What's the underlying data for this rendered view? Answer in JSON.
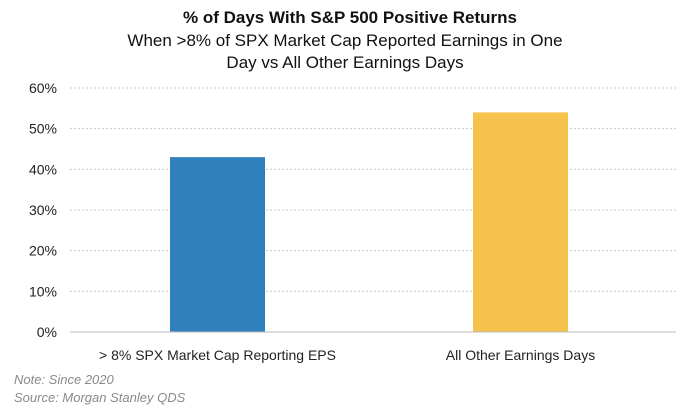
{
  "chart_data": {
    "type": "bar",
    "title": "% of Days With S&P 500 Positive Returns",
    "subtitle": "When >8% of SPX Market Cap Reported Earnings in One Day vs All Other Earnings Days",
    "categories": [
      "> 8% SPX Market Cap Reporting EPS",
      "All Other Earnings Days"
    ],
    "values": [
      43,
      54
    ],
    "colors": [
      "#3180be",
      "#f5c24c"
    ],
    "ylim": [
      0,
      60
    ],
    "yticks": [
      "0%",
      "10%",
      "20%",
      "30%",
      "40%",
      "50%",
      "60%"
    ],
    "xlabel": "",
    "ylabel": "",
    "grid": true
  },
  "notes": [
    "Note: Since 2020",
    "Source: Morgan Stanley QDS"
  ]
}
